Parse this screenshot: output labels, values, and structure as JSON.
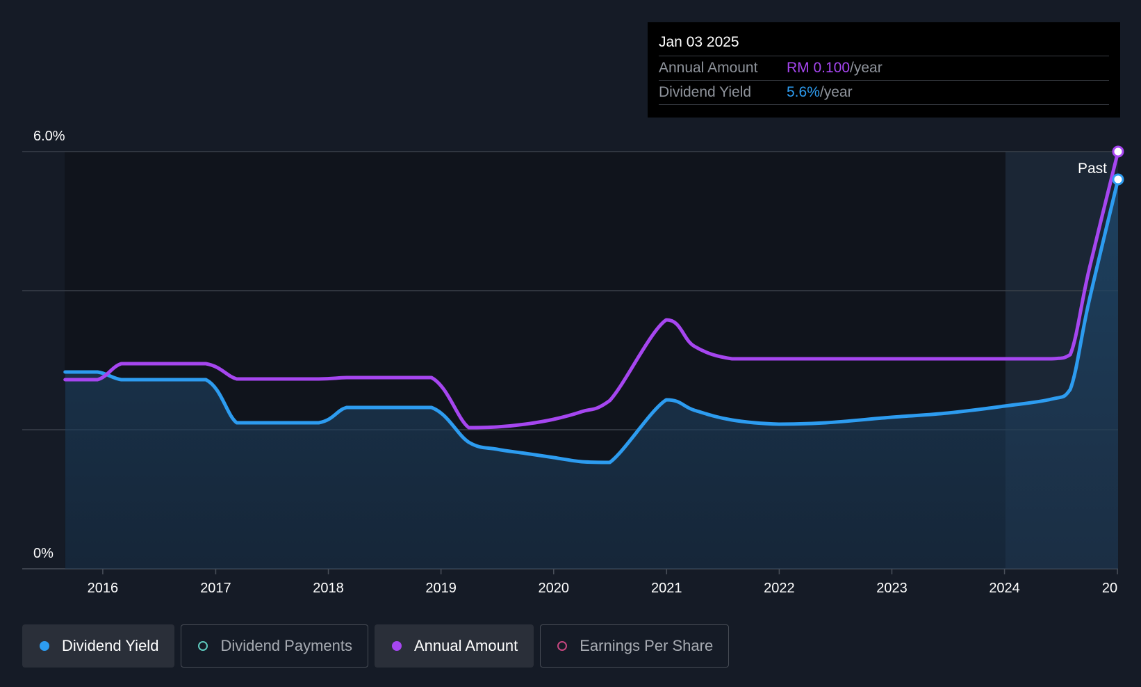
{
  "colors": {
    "background": "#151b26",
    "dividend_yield": "#2d9cf0",
    "annual_amount": "#a646f0",
    "dividend_payments": "#5ec8bd",
    "earnings_per_share": "#c4467f"
  },
  "tooltip": {
    "date": "Jan 03 2025",
    "annual_amount_label": "Annual Amount",
    "annual_amount_value": "RM 0.100",
    "annual_amount_unit": "/year",
    "dividend_yield_label": "Dividend Yield",
    "dividend_yield_value": "5.6%",
    "dividend_yield_unit": "/year"
  },
  "legend": [
    {
      "label": "Dividend Yield",
      "active": true,
      "color": "#2d9cf0"
    },
    {
      "label": "Dividend Payments",
      "active": false,
      "color": "#5ec8bd"
    },
    {
      "label": "Annual Amount",
      "active": true,
      "color": "#a646f0"
    },
    {
      "label": "Earnings Per Share",
      "active": false,
      "color": "#c4467f"
    }
  ],
  "chart_data": {
    "type": "line",
    "title": "",
    "xlabel": "",
    "ylabel": "",
    "ylim": [
      0,
      6.0
    ],
    "xlim": [
      "2015-04-15",
      "2025-01-03"
    ],
    "y_tick_labels": [
      "6.0%",
      "0%"
    ],
    "x_tick_labels": [
      "2016",
      "2017",
      "2018",
      "2019",
      "2020",
      "2021",
      "2022",
      "2023",
      "2024",
      "20"
    ],
    "past_label": "Past",
    "gridlines": [
      0,
      2,
      4,
      6
    ],
    "series": [
      {
        "name": "Dividend Yield",
        "unit": "%",
        "fill": true,
        "points": [
          [
            "2015-09-01",
            2.83
          ],
          [
            "2015-12-15",
            2.83
          ],
          [
            "2016-03-01",
            2.72
          ],
          [
            "2016-06-01",
            2.72
          ],
          [
            "2016-11-30",
            2.72
          ],
          [
            "2017-03-10",
            2.1
          ],
          [
            "2017-06-01",
            2.1
          ],
          [
            "2017-12-01",
            2.1
          ],
          [
            "2018-03-01",
            2.32
          ],
          [
            "2018-06-01",
            2.32
          ],
          [
            "2018-12-01",
            2.32
          ],
          [
            "2019-04-01",
            1.82
          ],
          [
            "2019-07-01",
            1.72
          ],
          [
            "2019-10-01",
            1.66
          ],
          [
            "2020-01-01",
            1.6
          ],
          [
            "2020-04-01",
            1.54
          ],
          [
            "2020-07-01",
            1.53
          ],
          [
            "2020-12-31",
            2.43
          ],
          [
            "2021-04-01",
            2.28
          ],
          [
            "2021-08-01",
            2.14
          ],
          [
            "2021-12-31",
            2.08
          ],
          [
            "2022-06-01",
            2.1
          ],
          [
            "2023-01-01",
            2.18
          ],
          [
            "2023-07-01",
            2.24
          ],
          [
            "2024-01-01",
            2.34
          ],
          [
            "2024-06-01",
            2.44
          ],
          [
            "2024-08-01",
            2.58
          ],
          [
            "2024-10-01",
            3.85
          ],
          [
            "2025-01-03",
            5.6
          ]
        ]
      },
      {
        "name": "Annual Amount",
        "unit": "RM",
        "fill": false,
        "points": [
          [
            "2015-09-01",
            2.72
          ],
          [
            "2015-12-15",
            2.72
          ],
          [
            "2016-03-01",
            2.95
          ],
          [
            "2016-06-01",
            2.95
          ],
          [
            "2016-11-30",
            2.95
          ],
          [
            "2017-03-10",
            2.73
          ],
          [
            "2017-06-01",
            2.73
          ],
          [
            "2017-12-01",
            2.73
          ],
          [
            "2018-03-01",
            2.75
          ],
          [
            "2018-06-01",
            2.75
          ],
          [
            "2018-12-01",
            2.75
          ],
          [
            "2019-04-01",
            2.03
          ],
          [
            "2019-07-01",
            2.04
          ],
          [
            "2019-10-01",
            2.08
          ],
          [
            "2020-01-01",
            2.15
          ],
          [
            "2020-04-01",
            2.26
          ],
          [
            "2020-07-01",
            2.42
          ],
          [
            "2020-12-31",
            3.58
          ],
          [
            "2021-04-01",
            3.2
          ],
          [
            "2021-08-01",
            3.02
          ],
          [
            "2021-12-31",
            3.02
          ],
          [
            "2022-06-01",
            3.02
          ],
          [
            "2023-01-01",
            3.02
          ],
          [
            "2023-07-01",
            3.02
          ],
          [
            "2024-01-01",
            3.02
          ],
          [
            "2024-06-01",
            3.02
          ],
          [
            "2024-08-01",
            3.08
          ],
          [
            "2024-10-01",
            4.3
          ],
          [
            "2025-01-03",
            6.0
          ]
        ]
      }
    ]
  }
}
